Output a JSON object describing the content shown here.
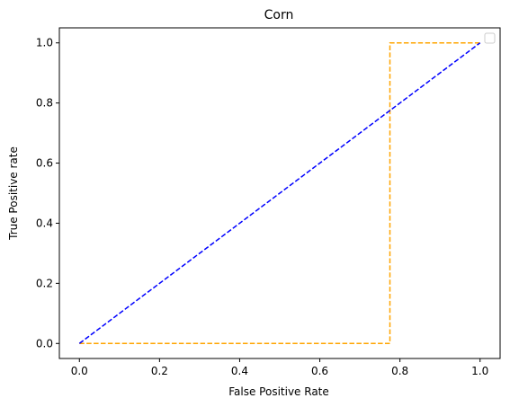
{
  "chart_data": {
    "type": "line",
    "title": "Corn",
    "xlabel": "False Positive Rate",
    "ylabel": "True Positive rate",
    "xlim": [
      -0.05,
      1.05
    ],
    "ylim": [
      -0.05,
      1.05
    ],
    "xticks": [
      0.0,
      0.2,
      0.4,
      0.6,
      0.8,
      1.0
    ],
    "yticks": [
      0.0,
      0.2,
      0.4,
      0.6,
      0.8,
      1.0
    ],
    "xtick_labels": [
      "0.0",
      "0.2",
      "0.4",
      "0.6",
      "0.8",
      "1.0"
    ],
    "ytick_labels": [
      "0.0",
      "0.2",
      "0.4",
      "0.6",
      "0.8",
      "1.0"
    ],
    "grid": false,
    "legend": {
      "placement": "top-right",
      "entries": []
    },
    "series": [
      {
        "style": "dashed",
        "color": "#ffa500",
        "x": [
          0.0,
          0.775,
          0.775,
          1.0
        ],
        "y": [
          0.0,
          0.0,
          1.0,
          1.0
        ]
      },
      {
        "style": "dashed",
        "color": "#0000ff",
        "x": [
          0.0,
          1.0
        ],
        "y": [
          0.0,
          1.0
        ]
      }
    ]
  }
}
